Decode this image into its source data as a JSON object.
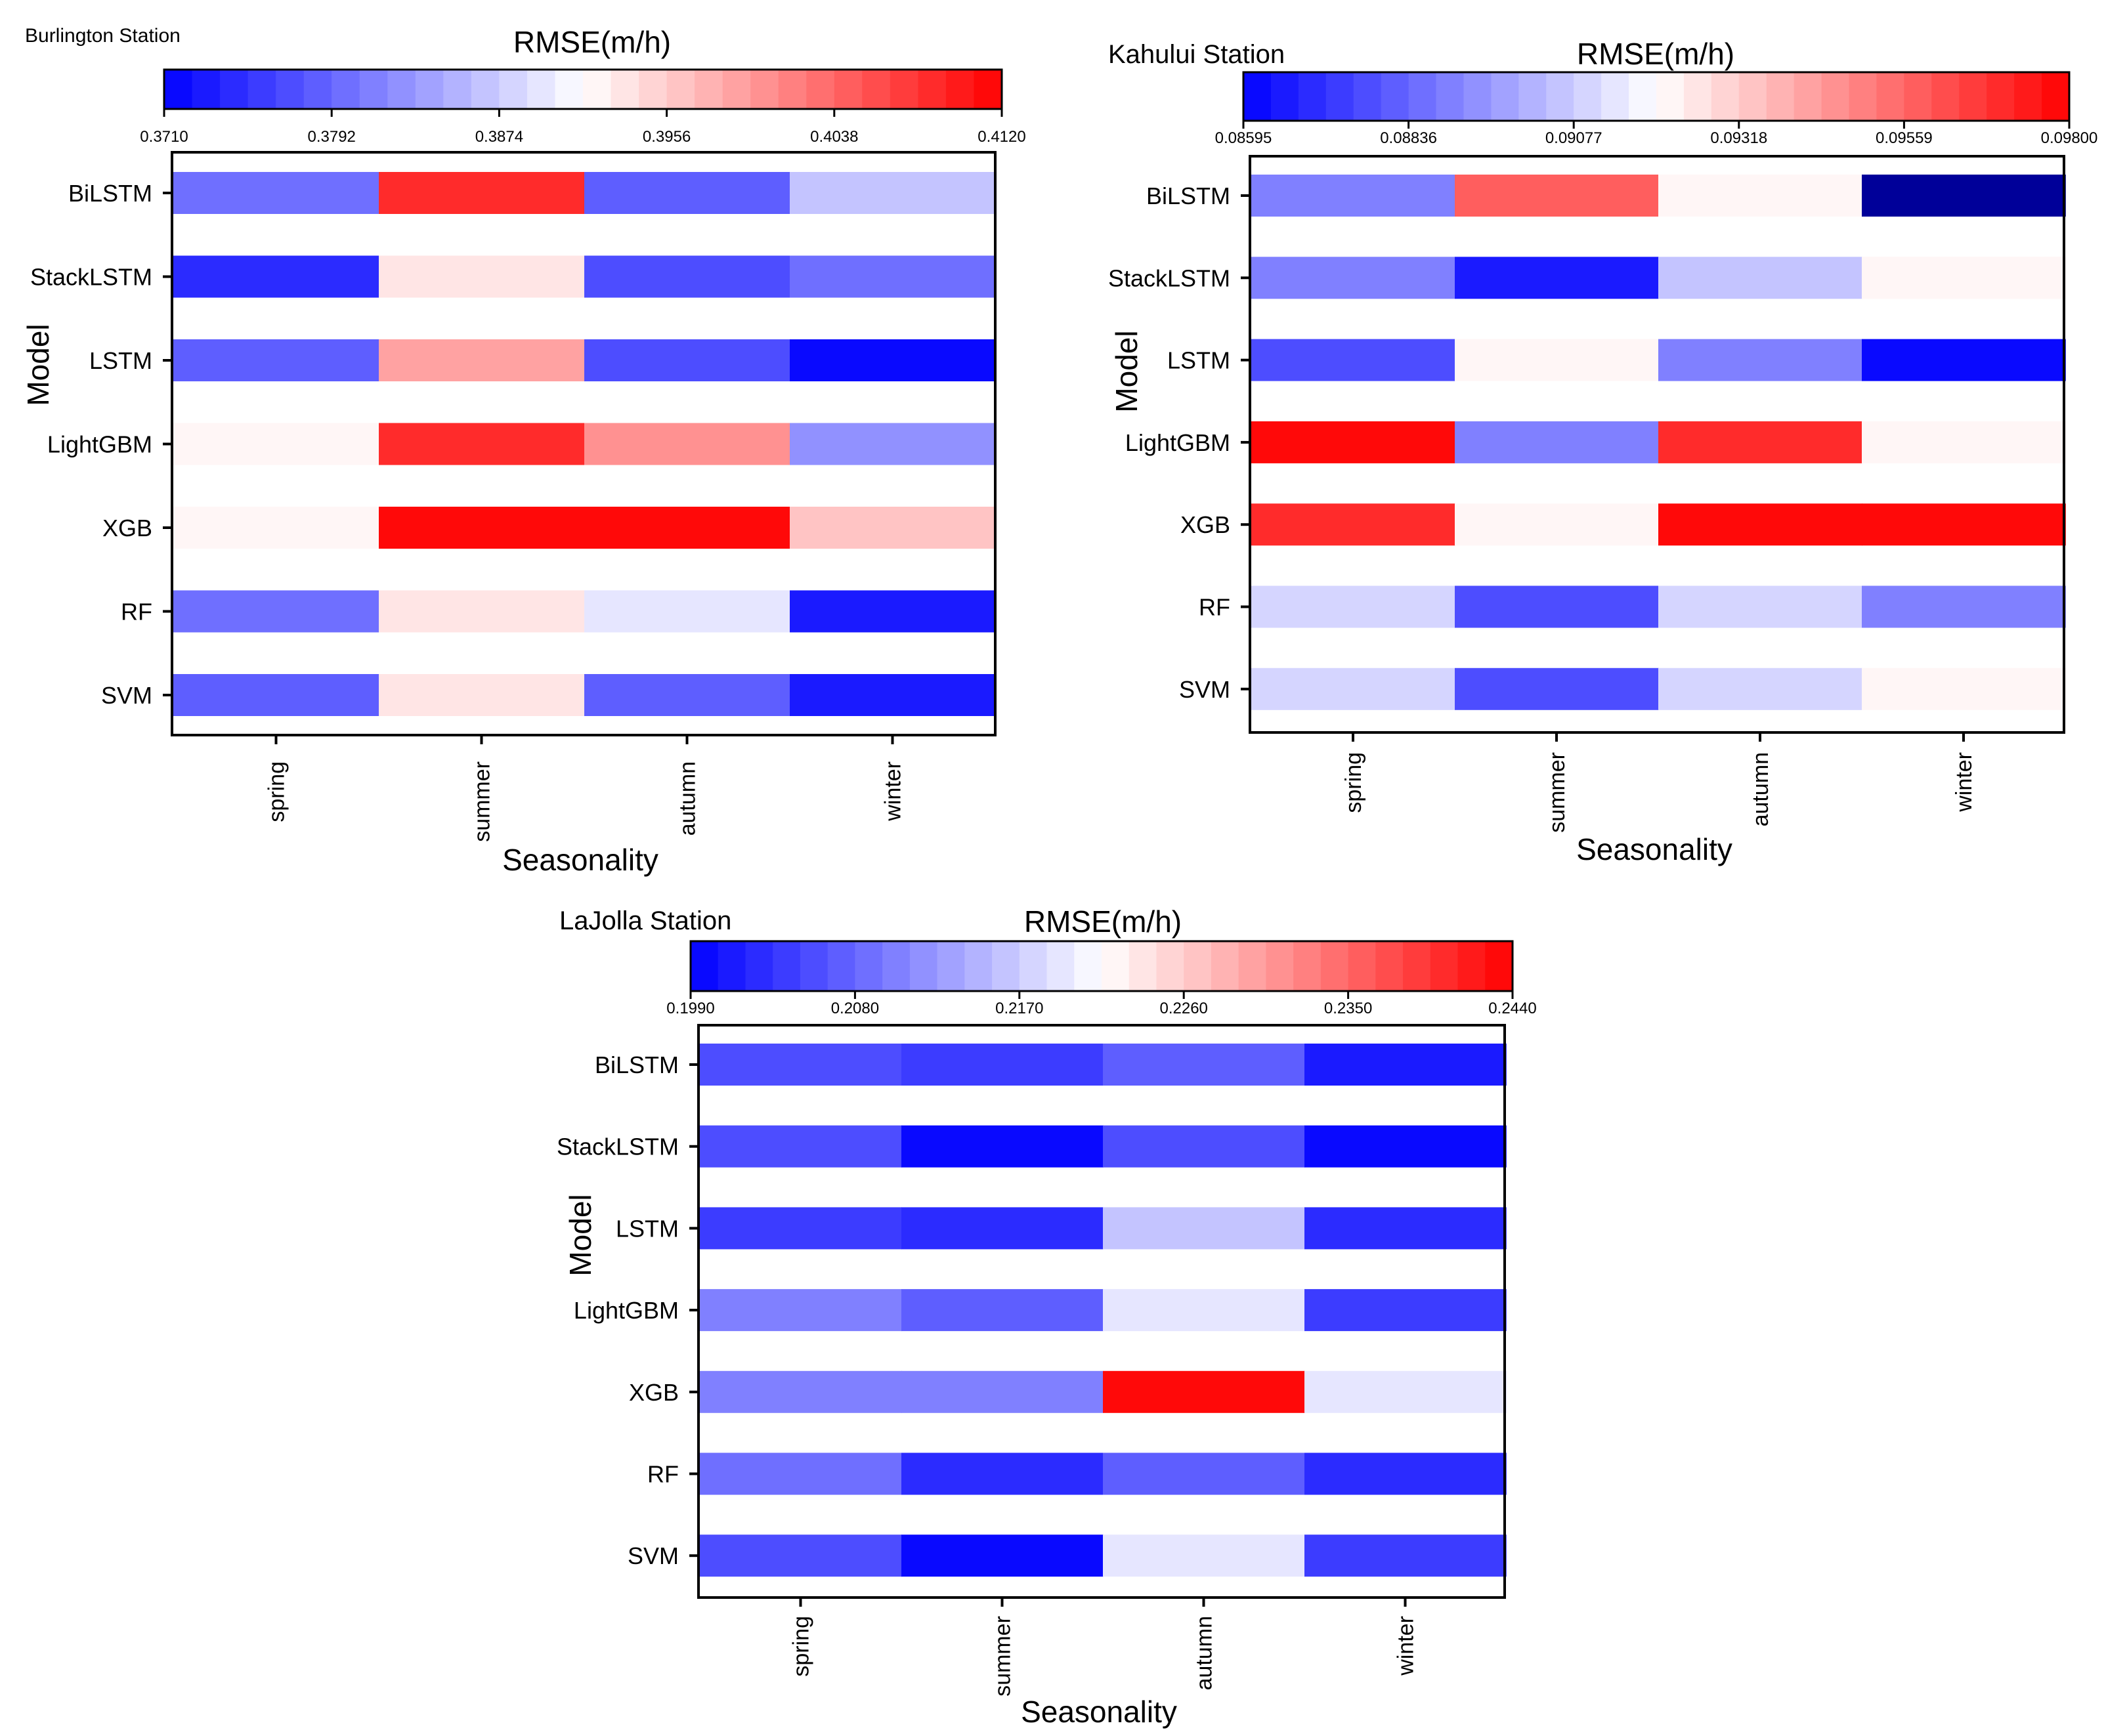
{
  "figure": {
    "colors": {
      "low": "#0000ff",
      "mid": "#ffffff",
      "high": "#ff0000",
      "frame": "#000000",
      "deep": "#000099"
    }
  },
  "chart_data": [
    {
      "type": "heatmap",
      "title": "Burlington Station",
      "colorbar_label": "RMSE(m/h)",
      "xlabel": "Seasonality",
      "ylabel": "Model",
      "categories": [
        "spring",
        "summer",
        "autumn",
        "winter"
      ],
      "models": [
        "BiLSTM",
        "StackLSTM",
        "LSTM",
        "LightGBM",
        "XGB",
        "RF",
        "SVM"
      ],
      "vmin": 0.371,
      "vmax": 0.412,
      "color_steps": 30,
      "ticks": [
        "0.3710",
        "0.3792",
        "0.3874",
        "0.3956",
        "0.4038",
        "0.4120"
      ],
      "tick_values": [
        0.371,
        0.3792,
        0.3874,
        0.3956,
        0.4038,
        0.412
      ],
      "values": [
        [
          0.3805,
          0.409,
          0.379,
          0.387
        ],
        [
          0.375,
          0.394,
          0.377,
          0.3805
        ],
        [
          0.379,
          0.399,
          0.377,
          0.371
        ],
        [
          0.392,
          0.409,
          0.401,
          0.382
        ],
        [
          0.392,
          0.412,
          0.412,
          0.396
        ],
        [
          0.3805,
          0.394,
          0.3895,
          0.3725
        ],
        [
          0.378,
          0.394,
          0.378,
          0.3725
        ]
      ]
    },
    {
      "type": "heatmap",
      "title": "Kahului Station",
      "colorbar_label": "RMSE(m/h)",
      "xlabel": "Seasonality",
      "ylabel": "Model",
      "categories": [
        "spring",
        "summer",
        "autumn",
        "winter"
      ],
      "models": [
        "BiLSTM",
        "StackLSTM",
        "LSTM",
        "LightGBM",
        "XGB",
        "RF",
        "SVM"
      ],
      "vmin": 0.08595,
      "vmax": 0.098,
      "color_steps": 30,
      "ticks": [
        "0.08595",
        "0.08836",
        "0.09077",
        "0.09318",
        "0.09559",
        "0.09800"
      ],
      "tick_values": [
        0.08595,
        0.08836,
        0.09077,
        0.09318,
        0.09559,
        0.098
      ],
      "values": [
        [
          0.089,
          0.0956,
          0.0922,
          0.082
        ],
        [
          0.089,
          0.0865,
          0.0904,
          0.0922
        ],
        [
          0.0878,
          0.0922,
          0.089,
          0.086
        ],
        [
          0.098,
          0.089,
          0.0968,
          0.0922
        ],
        [
          0.0968,
          0.0922,
          0.0976,
          0.0979
        ],
        [
          0.091,
          0.0878,
          0.091,
          0.089
        ],
        [
          0.091,
          0.0878,
          0.091,
          0.0922
        ]
      ]
    },
    {
      "type": "heatmap",
      "title": "LaJolla Station",
      "colorbar_label": "RMSE(m/h)",
      "xlabel": "Seasonality",
      "ylabel": "Model",
      "categories": [
        "spring",
        "summer",
        "autumn",
        "winter"
      ],
      "models": [
        "BiLSTM",
        "StackLSTM",
        "LSTM",
        "LightGBM",
        "XGB",
        "RF",
        "SVM"
      ],
      "vmin": 0.199,
      "vmax": 0.244,
      "color_steps": 30,
      "ticks": [
        "0.1990",
        "0.2080",
        "0.2170",
        "0.2260",
        "0.2350",
        "0.2440"
      ],
      "tick_values": [
        0.199,
        0.208,
        0.217,
        0.226,
        0.235,
        0.244
      ],
      "values": [
        [
          0.206,
          0.2045,
          0.208,
          0.201
        ],
        [
          0.206,
          0.1995,
          0.206,
          0.199
        ],
        [
          0.2045,
          0.202,
          0.217,
          0.203
        ],
        [
          0.211,
          0.208,
          0.22,
          0.2045
        ],
        [
          0.211,
          0.211,
          0.244,
          0.22
        ],
        [
          0.2095,
          0.203,
          0.207,
          0.203
        ],
        [
          0.206,
          0.1995,
          0.22,
          0.2045
        ]
      ]
    }
  ]
}
